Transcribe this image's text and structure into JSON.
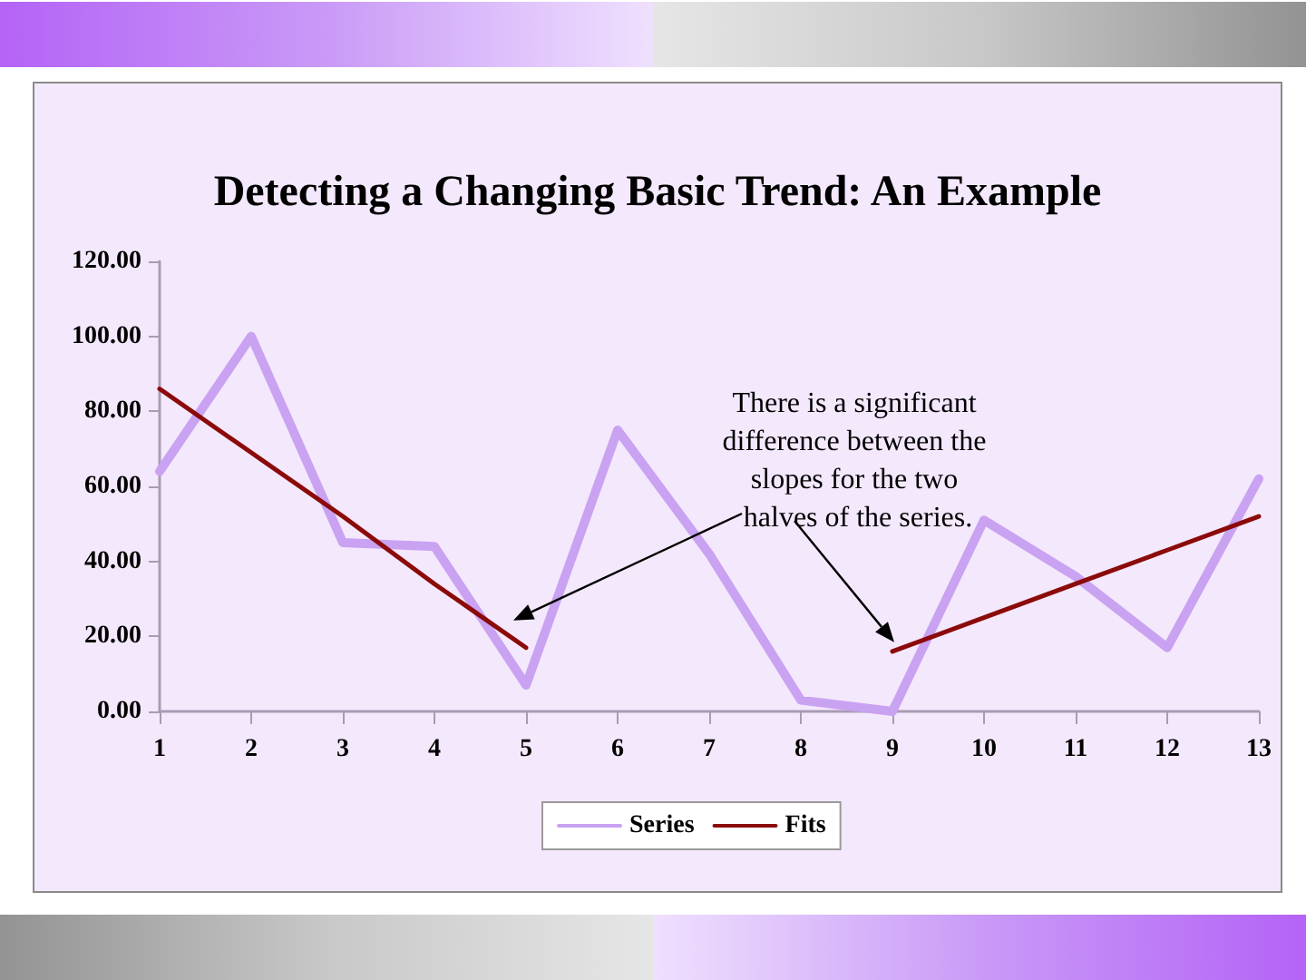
{
  "chart_data": {
    "type": "line",
    "title": "Detecting a Changing Basic Trend: An Example",
    "x": [
      1,
      2,
      3,
      4,
      5,
      6,
      7,
      8,
      9,
      10,
      11,
      12,
      13
    ],
    "series": [
      {
        "name": "Series",
        "color": "#c9a2f2",
        "values": [
          64,
          100,
          45,
          44,
          7,
          75,
          42,
          3,
          0,
          51,
          36,
          17,
          62
        ]
      },
      {
        "name": "Fits",
        "color": "#8b0a0a",
        "values": [
          86,
          69,
          52,
          34,
          17,
          null,
          null,
          null,
          16,
          25,
          34,
          43,
          52
        ]
      }
    ],
    "xlim": [
      1,
      13
    ],
    "xticks": [
      1,
      2,
      3,
      4,
      5,
      6,
      7,
      8,
      9,
      10,
      11,
      12,
      13
    ],
    "ylim": [
      0,
      120
    ],
    "yticks": [
      {
        "value": 0,
        "label": "0.00"
      },
      {
        "value": 20,
        "label": "20.00"
      },
      {
        "value": 40,
        "label": "40.00"
      },
      {
        "value": 60,
        "label": "60.00"
      },
      {
        "value": 80,
        "label": "80.00"
      },
      {
        "value": 100,
        "label": "100.00"
      },
      {
        "value": 120,
        "label": "120.00"
      }
    ],
    "legend": "bottom",
    "marker": "none",
    "line_style": "solid",
    "annotations": [
      "There is a significant difference between the slopes for the two halves of the series."
    ]
  }
}
